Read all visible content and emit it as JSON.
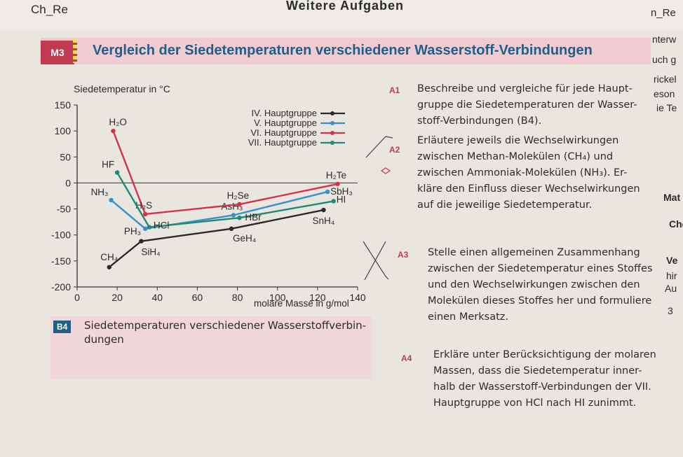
{
  "header": {
    "left": "Ch_Re",
    "center": "Weitere Aufgaben",
    "right": "n_Re"
  },
  "section": {
    "label": "M3",
    "title": "Vergleich der Siedetemperaturen verschiedener Wasserstoff-Verbindungen"
  },
  "margin_fragments": [
    "nterw",
    "uch g",
    "rickel",
    "eson",
    "ie Te",
    "Mat",
    "Che",
    "Ve",
    "hir",
    "Au",
    "3"
  ],
  "tasks": [
    {
      "label": "A1",
      "lines": [
        "Beschreibe und vergleiche für jede Haupt-",
        "gruppe die Siedetemperaturen der Wasser-",
        "stoff-Verbindungen (B4)."
      ]
    },
    {
      "label": "A2",
      "lines": [
        "Erläutere jeweils die Wechselwirkungen",
        "zwischen Methan-Molekülen (CH₄) und",
        "zwischen Ammoniak-Molekülen (NH₃). Er-",
        "kläre den Einfluss dieser Wechselwirkungen",
        "auf die jeweilige Siedetemperatur."
      ]
    },
    {
      "label": "A3",
      "lines": [
        "Stelle einen allgemeinen Zusammenhang",
        "zwischen der Siedetemperatur eines Stoffes",
        "und den Wechselwirkungen zwischen den",
        "Molekülen dieses Stoffes her und formuliere",
        "einen Merksatz."
      ]
    },
    {
      "label": "A4",
      "lines": [
        "Erkläre unter Berücksichtigung der molaren",
        "Massen, dass die Siedetemperatur inner-",
        "halb der Wasserstoff-Verbindungen der VII.",
        "Hauptgruppe von HCl nach HI zunimmt."
      ]
    }
  ],
  "figure": {
    "label": "B4",
    "caption_lines": [
      "Siedetemperaturen verschiedener Wasserstoffverbin-",
      "dungen"
    ]
  },
  "chart_data": {
    "type": "line",
    "title": "",
    "ylabel": "Siedetemperatur in °C",
    "xlabel": "molare Masse in g/mol",
    "xlim": [
      0,
      140
    ],
    "ylim": [
      -200,
      150
    ],
    "xticks": [
      0,
      20,
      40,
      60,
      80,
      100,
      120,
      140
    ],
    "yticks": [
      150,
      100,
      50,
      0,
      -50,
      -100,
      -150,
      -200
    ],
    "series": [
      {
        "name": "IV. Hauptgruppe",
        "color": "#2a2a2a",
        "points": [
          {
            "label": "CH₄",
            "x": 16,
            "y": -162
          },
          {
            "label": "SiH₄",
            "x": 32,
            "y": -112
          },
          {
            "label": "GeH₄",
            "x": 77,
            "y": -88
          },
          {
            "label": "SnH₄",
            "x": 123,
            "y": -52
          }
        ]
      },
      {
        "name": "V. Hauptgruppe",
        "color": "#3b8fce",
        "points": [
          {
            "label": "NH₃",
            "x": 17,
            "y": -33
          },
          {
            "label": "PH₃",
            "x": 34,
            "y": -88
          },
          {
            "label": "AsH₃",
            "x": 78,
            "y": -62
          },
          {
            "label": "SbH₃",
            "x": 125,
            "y": -17
          }
        ]
      },
      {
        "name": "VI. Hauptgruppe",
        "color": "#d2334a",
        "points": [
          {
            "label": "H₂O",
            "x": 18,
            "y": 100
          },
          {
            "label": "H₂S",
            "x": 34,
            "y": -60
          },
          {
            "label": "H₂Se",
            "x": 81,
            "y": -41
          },
          {
            "label": "H₂Te",
            "x": 130,
            "y": -2
          }
        ]
      },
      {
        "name": "VII. Hauptgruppe",
        "color": "#1f8a78",
        "points": [
          {
            "label": "HF",
            "x": 20,
            "y": 20
          },
          {
            "label": "HCl",
            "x": 36,
            "y": -85
          },
          {
            "label": "HBr",
            "x": 81,
            "y": -67
          },
          {
            "label": "HI",
            "x": 128,
            "y": -35
          }
        ]
      }
    ]
  }
}
